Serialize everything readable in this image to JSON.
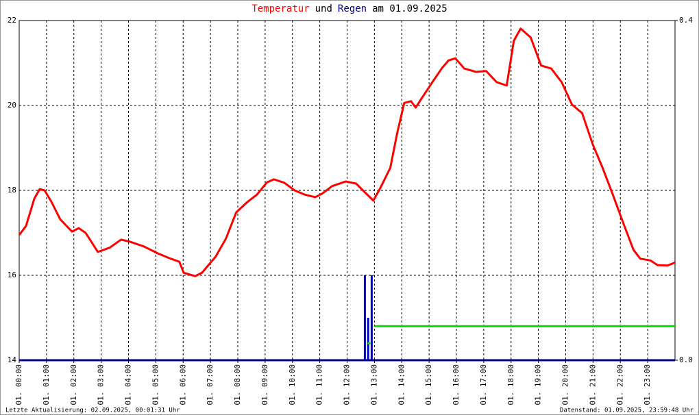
{
  "chart_data": {
    "type": "line",
    "title": [
      "Temperatur",
      "und",
      "Regen",
      "am 01.09.2025"
    ],
    "title_colors": [
      "#ff0000",
      "#000000",
      "#000080",
      "#000000"
    ],
    "footer_left": "Letzte Aktualisierung: 02.09.2025, 00:01:31 Uhr",
    "footer_right": "Datenstand: 01.09.2025, 23:59:48 Uhr",
    "xlim": [
      0,
      24
    ],
    "xticks": [
      {
        "value": 0,
        "label": "01. 00:00"
      },
      {
        "value": 1,
        "label": "01. 01:00"
      },
      {
        "value": 2,
        "label": "01. 02:00"
      },
      {
        "value": 3,
        "label": "01. 03:00"
      },
      {
        "value": 4,
        "label": "01. 04:00"
      },
      {
        "value": 5,
        "label": "01. 05:00"
      },
      {
        "value": 6,
        "label": "01. 06:00"
      },
      {
        "value": 7,
        "label": "01. 07:00"
      },
      {
        "value": 8,
        "label": "01. 08:00"
      },
      {
        "value": 9,
        "label": "01. 09:00"
      },
      {
        "value": 10,
        "label": "01. 10:00"
      },
      {
        "value": 11,
        "label": "01. 11:00"
      },
      {
        "value": 12,
        "label": "01. 12:00"
      },
      {
        "value": 13,
        "label": "01. 13:00"
      },
      {
        "value": 14,
        "label": "01. 14:00"
      },
      {
        "value": 15,
        "label": "01. 15:00"
      },
      {
        "value": 16,
        "label": "01. 16:00"
      },
      {
        "value": 17,
        "label": "01. 17:00"
      },
      {
        "value": 18,
        "label": "01. 18:00"
      },
      {
        "value": 19,
        "label": "01. 19:00"
      },
      {
        "value": 20,
        "label": "01. 20:00"
      },
      {
        "value": 21,
        "label": "01. 21:00"
      },
      {
        "value": 22,
        "label": "01. 22:00"
      },
      {
        "value": 23,
        "label": "01. 23:00"
      }
    ],
    "ylim": [
      14,
      22
    ],
    "yticks": [
      14,
      16,
      18,
      20,
      22
    ],
    "y2lim": [
      0,
      0.4
    ],
    "y2ticks": [
      {
        "value": 0,
        "label": "0.0"
      },
      0.4
    ],
    "grid": true,
    "series": [
      {
        "type": "line",
        "color": "#ff0000",
        "x": [
          0,
          0.25,
          0.55,
          0.75,
          0.93,
          1.18,
          1.5,
          1.93,
          2.18,
          2.43,
          2.88,
          3.31,
          3.73,
          4.06,
          4.56,
          5.06,
          5.51,
          5.86,
          6.02,
          6.44,
          6.69,
          7.19,
          7.57,
          7.94,
          8.32,
          8.7,
          9.07,
          9.32,
          9.7,
          10.08,
          10.45,
          10.83,
          11.08,
          11.45,
          11.95,
          12.33,
          12.58,
          12.96,
          13.21,
          13.58,
          13.83,
          14.09,
          14.34,
          14.51,
          14.71,
          15.09,
          15.46,
          15.71,
          15.96,
          16.29,
          16.72,
          17.09,
          17.47,
          17.84,
          18.1,
          18.35,
          18.72,
          19.1,
          19.47,
          19.85,
          20.23,
          20.6,
          20.98,
          21.35,
          21.73,
          22.1,
          22.48,
          22.73,
          23.1,
          23.36,
          23.73,
          24
        ],
        "values": [
          16.95,
          17.16,
          17.8,
          18.03,
          18.0,
          17.73,
          17.32,
          17.03,
          17.11,
          17.0,
          16.55,
          16.65,
          16.84,
          16.79,
          16.68,
          16.52,
          16.4,
          16.32,
          16.06,
          15.98,
          16.06,
          16.44,
          16.87,
          17.48,
          17.71,
          17.9,
          18.19,
          18.26,
          18.18,
          18.0,
          17.9,
          17.84,
          17.92,
          18.1,
          18.21,
          18.16,
          18.0,
          17.76,
          18.05,
          18.53,
          19.34,
          20.06,
          20.1,
          19.95,
          20.15,
          20.52,
          20.87,
          21.06,
          21.11,
          20.87,
          20.79,
          20.81,
          20.55,
          20.47,
          21.52,
          21.81,
          21.6,
          20.94,
          20.87,
          20.55,
          20.02,
          19.82,
          19.1,
          18.53,
          17.89,
          17.24,
          16.6,
          16.39,
          16.35,
          16.24,
          16.23,
          16.3
        ]
      },
      {
        "type": "bar",
        "axis": "y2",
        "color": "#0000cc",
        "x": [
          12.65,
          12.77,
          12.9
        ],
        "values": [
          0.1,
          0.05,
          0.1
        ]
      },
      {
        "type": "line",
        "axis": "y2",
        "color": "#00e000",
        "x": [
          12.75,
          12.85,
          null,
          13.0,
          24
        ],
        "values": [
          0.02,
          0.02,
          null,
          0.04,
          0.04
        ]
      }
    ]
  }
}
